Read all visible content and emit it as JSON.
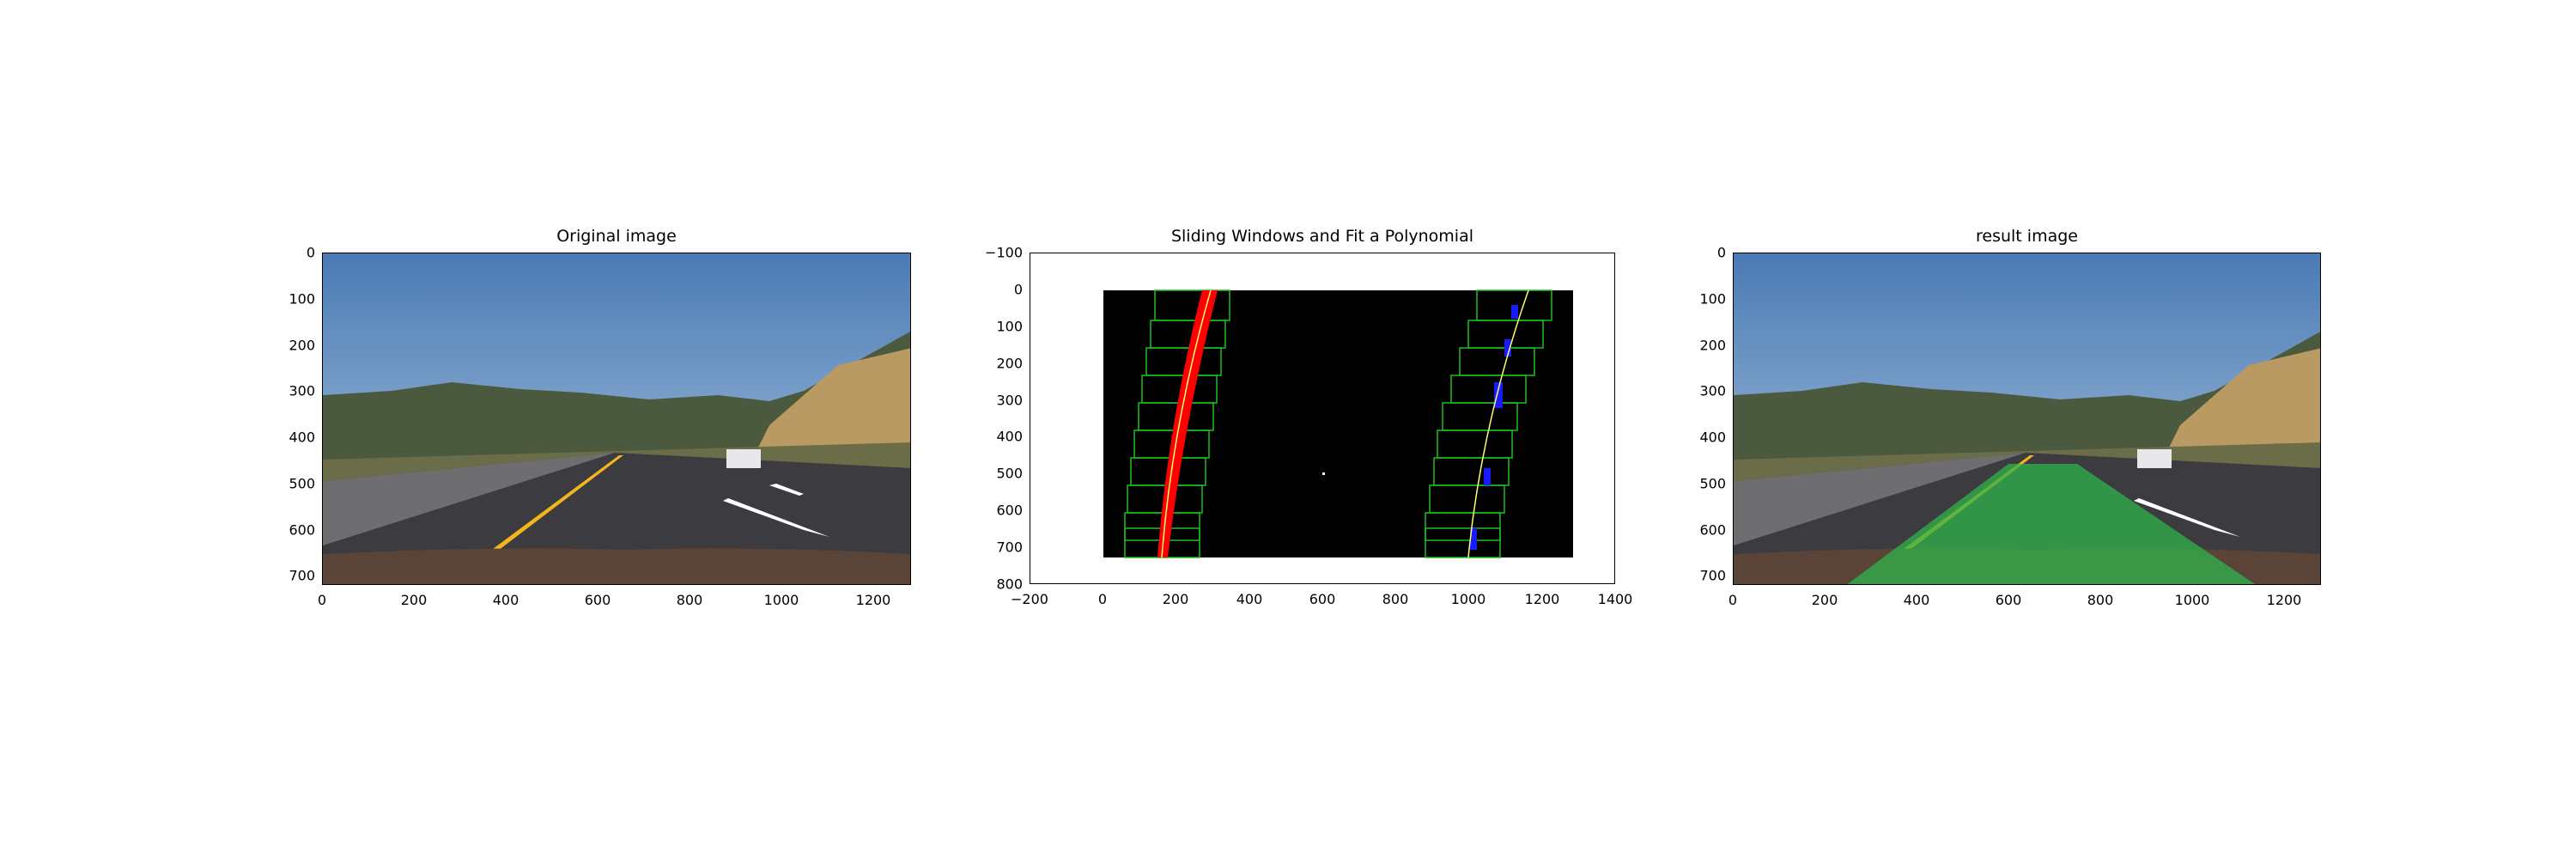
{
  "panels": [
    {
      "title": "Original image",
      "x_ticks": [
        "0",
        "200",
        "400",
        "600",
        "800",
        "1000",
        "1200"
      ],
      "y_ticks": [
        "0",
        "100",
        "200",
        "300",
        "400",
        "500",
        "600",
        "700"
      ]
    },
    {
      "title": "Sliding Windows and Fit a Polynomial",
      "x_ticks": [
        "−200",
        "0",
        "200",
        "400",
        "600",
        "800",
        "1000",
        "1200",
        "1400"
      ],
      "y_ticks": [
        "−100",
        "0",
        "100",
        "200",
        "300",
        "400",
        "500",
        "600",
        "700",
        "800"
      ]
    },
    {
      "title": "result image",
      "x_ticks": [
        "0",
        "200",
        "400",
        "600",
        "800",
        "1000",
        "1200"
      ],
      "y_ticks": [
        "0",
        "100",
        "200",
        "300",
        "400",
        "500",
        "600",
        "700"
      ]
    }
  ],
  "colors": {
    "sky_top": "#4f7fb8",
    "sky_bottom": "#a9c4dc",
    "road": "#3a3a3e",
    "lane_yellow": "#f2b51e",
    "lane_fill": "#2fb34a",
    "windows": "#1fbf1f",
    "left_pixels": "#ff0000",
    "right_pixels": "#1a1aff",
    "fit_line": "#ffff66"
  }
}
